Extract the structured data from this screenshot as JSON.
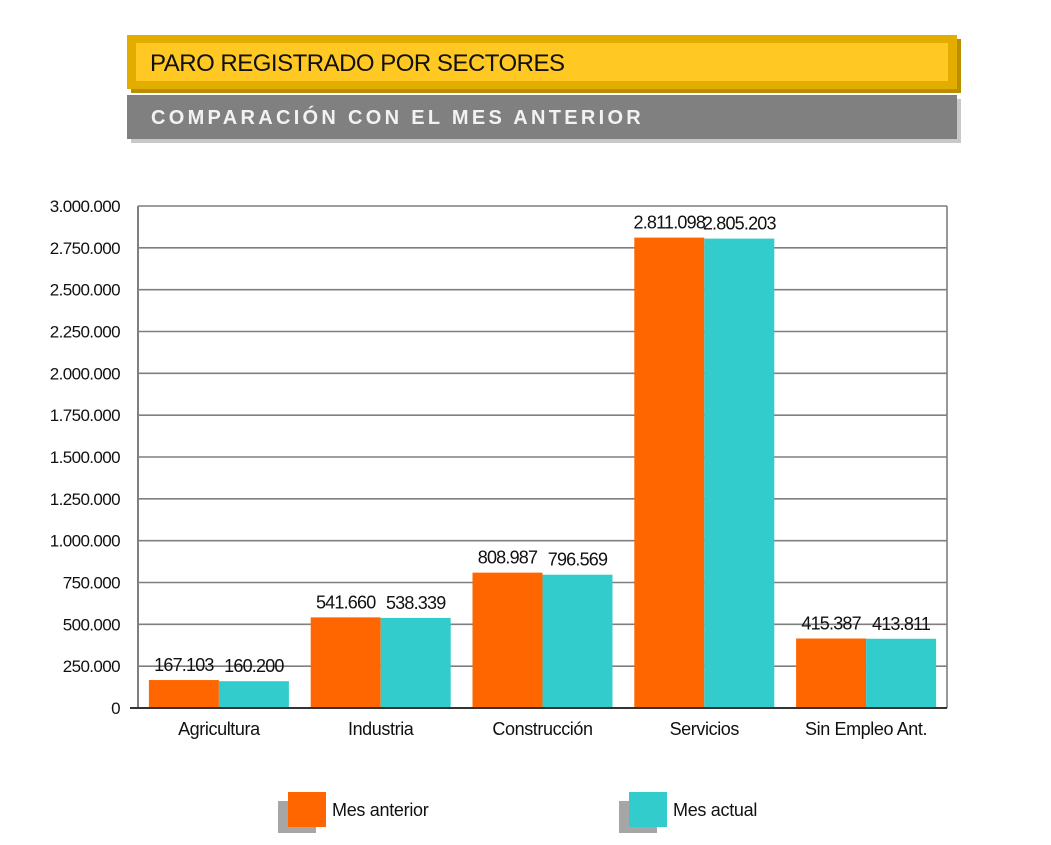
{
  "header": {
    "title": "PARO REGISTRADO POR SECTORES",
    "subtitle": "COMPARACIÓN CON EL MES ANTERIOR"
  },
  "colors": {
    "prev": "#ff6600",
    "curr": "#33cccc",
    "grid": "#7f7f7f",
    "banner_yellow": "#ffc822",
    "banner_grey": "#808080"
  },
  "chart_data": {
    "type": "bar",
    "categories": [
      "Agricultura",
      "Industria",
      "Construcción",
      "Servicios",
      "Sin Empleo Ant."
    ],
    "series": [
      {
        "name": "Mes anterior",
        "values": [
          167103,
          541660,
          808987,
          2811098,
          415387
        ],
        "labels": [
          "167.103",
          "541.660",
          "808.987",
          "2.811.098",
          "415.387"
        ]
      },
      {
        "name": "Mes actual",
        "values": [
          160200,
          538339,
          796569,
          2805203,
          413811
        ],
        "labels": [
          "160.200",
          "538.339",
          "796.569",
          "2.805.203",
          "413.811"
        ]
      }
    ],
    "ylim": [
      0,
      3000000
    ],
    "yticks": [
      0,
      250000,
      500000,
      750000,
      1000000,
      1250000,
      1500000,
      1750000,
      2000000,
      2250000,
      2500000,
      2750000,
      3000000
    ],
    "ytick_labels": [
      "0",
      "250.000",
      "500.000",
      "750.000",
      "1.000.000",
      "1.250.000",
      "1.500.000",
      "1.750.000",
      "2.000.000",
      "2.250.000",
      "2.500.000",
      "2.750.000",
      "3.000.000"
    ],
    "grid": true,
    "legend": "bottom",
    "title": "PARO REGISTRADO POR SECTORES",
    "subtitle": "COMPARACIÓN CON EL MES ANTERIOR",
    "xlabel": "",
    "ylabel": ""
  }
}
